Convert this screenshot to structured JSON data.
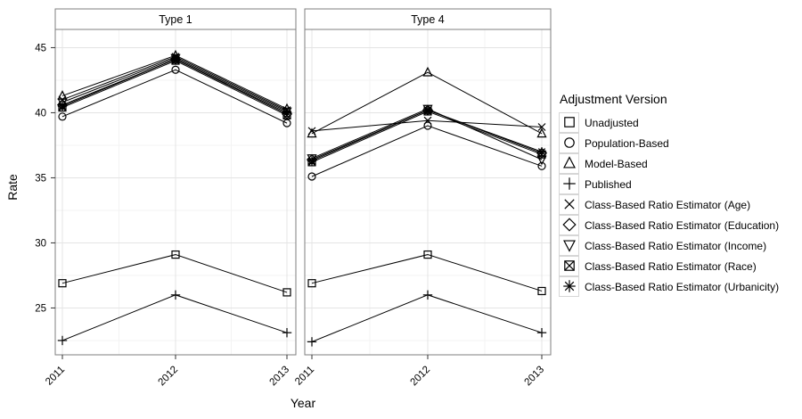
{
  "chart_data": {
    "type": "line",
    "title": "",
    "xlabel": "Year",
    "ylabel": "Rate",
    "legend_title": "Adjustment Version",
    "legend_position": "right",
    "grid": "major+minor",
    "x_categories": [
      "2011",
      "2012",
      "2013"
    ],
    "yticks": [
      25,
      30,
      35,
      40,
      45
    ],
    "ylim": [
      21.4,
      46.4
    ],
    "facet_labels": [
      "Type 1",
      "Type 4"
    ],
    "series": [
      {
        "name": "Unadjusted",
        "marker": "open-square"
      },
      {
        "name": "Population-Based",
        "marker": "open-circle"
      },
      {
        "name": "Model-Based",
        "marker": "open-triangle-up"
      },
      {
        "name": "Published",
        "marker": "plus"
      },
      {
        "name": "Class-Based Ratio Estimator (Age)",
        "marker": "x"
      },
      {
        "name": "Class-Based Ratio Estimator (Education)",
        "marker": "open-diamond"
      },
      {
        "name": "Class-Based Ratio Estimator (Income)",
        "marker": "open-triangle-down"
      },
      {
        "name": "Class-Based Ratio Estimator (Race)",
        "marker": "square-x"
      },
      {
        "name": "Class-Based Ratio Estimator (Urbanicity)",
        "marker": "asterisk"
      }
    ],
    "facets": [
      {
        "label": "Type 1",
        "series_values": [
          [
            26.9,
            29.1,
            26.2
          ],
          [
            39.7,
            43.3,
            39.2
          ],
          [
            41.3,
            44.4,
            40.3
          ],
          [
            22.5,
            26.0,
            23.1
          ],
          [
            41.0,
            44.3,
            40.2
          ],
          [
            40.6,
            44.1,
            39.9
          ],
          [
            40.8,
            44.2,
            40.1
          ],
          [
            40.4,
            44.0,
            39.8
          ],
          [
            40.5,
            44.1,
            40.0
          ]
        ]
      },
      {
        "label": "Type 4",
        "series_values": [
          [
            26.9,
            29.1,
            26.3
          ],
          [
            35.1,
            39.0,
            35.9
          ],
          [
            38.4,
            43.1,
            38.4
          ],
          [
            22.4,
            26.0,
            23.1
          ],
          [
            38.6,
            39.4,
            38.9
          ],
          [
            36.4,
            40.2,
            36.9
          ],
          [
            36.5,
            40.3,
            36.4
          ],
          [
            36.2,
            40.1,
            36.8
          ],
          [
            36.3,
            40.2,
            37.0
          ]
        ]
      }
    ],
    "colors": {
      "series_stroke": "#000000",
      "panel_border": "#7f7f7f",
      "strip_border": "#7f7f7f",
      "strip_fill": "#ffffff",
      "grid_major": "#e4e4e4",
      "grid_minor": "#f3f3f3",
      "tick_mark": "#333333",
      "legend_key_border": "#d6d6d6"
    }
  }
}
